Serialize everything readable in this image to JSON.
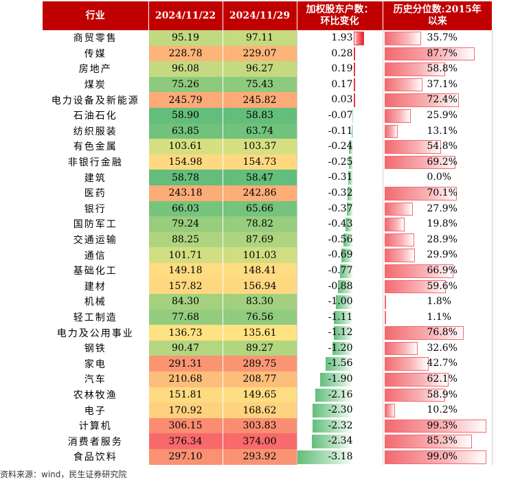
{
  "chart_data": {
    "type": "table",
    "columns": [
      "行业",
      "2024/11/22",
      "2024/11/29",
      "加权股东户数：环比变化",
      "历史分位数:2015年以来"
    ],
    "header": {
      "industry": "行业",
      "date1": "2024/11/22",
      "date2": "2024/11/29",
      "change_line1": "加权股东户数：",
      "change_line2": "环比变化",
      "pct_line1": "历史分位数:2015年",
      "pct_line2": "以来"
    },
    "rows": [
      {
        "industry": "商贸零售",
        "v1": "95.19",
        "v2": "97.11",
        "change": "1.93",
        "pct": "35.7%"
      },
      {
        "industry": "传媒",
        "v1": "228.78",
        "v2": "229.07",
        "change": "0.28",
        "pct": "87.7%"
      },
      {
        "industry": "房地产",
        "v1": "96.08",
        "v2": "96.27",
        "change": "0.19",
        "pct": "58.8%"
      },
      {
        "industry": "煤炭",
        "v1": "75.26",
        "v2": "75.43",
        "change": "0.17",
        "pct": "37.1%"
      },
      {
        "industry": "电力设备及新能源",
        "v1": "245.79",
        "v2": "245.82",
        "change": "0.03",
        "pct": "72.4%"
      },
      {
        "industry": "石油石化",
        "v1": "58.90",
        "v2": "58.83",
        "change": "-0.07",
        "pct": "25.9%"
      },
      {
        "industry": "纺织服装",
        "v1": "63.85",
        "v2": "63.74",
        "change": "-0.11",
        "pct": "13.1%"
      },
      {
        "industry": "有色金属",
        "v1": "103.61",
        "v2": "103.37",
        "change": "-0.24",
        "pct": "54.8%"
      },
      {
        "industry": "非银行金融",
        "v1": "154.98",
        "v2": "154.73",
        "change": "-0.25",
        "pct": "69.2%"
      },
      {
        "industry": "建筑",
        "v1": "58.78",
        "v2": "58.47",
        "change": "-0.31",
        "pct": "0.0%"
      },
      {
        "industry": "医药",
        "v1": "243.18",
        "v2": "242.86",
        "change": "-0.32",
        "pct": "70.1%"
      },
      {
        "industry": "银行",
        "v1": "66.03",
        "v2": "65.66",
        "change": "-0.37",
        "pct": "27.9%"
      },
      {
        "industry": "国防军工",
        "v1": "79.24",
        "v2": "78.82",
        "change": "-0.43",
        "pct": "19.8%"
      },
      {
        "industry": "交通运输",
        "v1": "88.25",
        "v2": "87.69",
        "change": "-0.56",
        "pct": "28.9%"
      },
      {
        "industry": "通信",
        "v1": "101.71",
        "v2": "101.03",
        "change": "-0.69",
        "pct": "29.9%"
      },
      {
        "industry": "基础化工",
        "v1": "149.18",
        "v2": "148.41",
        "change": "-0.77",
        "pct": "66.9%"
      },
      {
        "industry": "建材",
        "v1": "157.82",
        "v2": "156.94",
        "change": "-0.88",
        "pct": "59.6%"
      },
      {
        "industry": "机械",
        "v1": "84.30",
        "v2": "83.30",
        "change": "-1.00",
        "pct": "1.8%"
      },
      {
        "industry": "轻工制造",
        "v1": "77.68",
        "v2": "76.56",
        "change": "-1.11",
        "pct": "1.1%"
      },
      {
        "industry": "电力及公用事业",
        "v1": "136.73",
        "v2": "135.61",
        "change": "-1.12",
        "pct": "76.8%"
      },
      {
        "industry": "钢铁",
        "v1": "90.47",
        "v2": "89.27",
        "change": "-1.20",
        "pct": "32.6%"
      },
      {
        "industry": "家电",
        "v1": "291.31",
        "v2": "289.75",
        "change": "-1.56",
        "pct": "42.7%"
      },
      {
        "industry": "汽车",
        "v1": "210.68",
        "v2": "208.77",
        "change": "-1.90",
        "pct": "62.1%"
      },
      {
        "industry": "农林牧渔",
        "v1": "151.81",
        "v2": "149.65",
        "change": "-2.16",
        "pct": "58.9%"
      },
      {
        "industry": "电子",
        "v1": "170.92",
        "v2": "168.62",
        "change": "-2.30",
        "pct": "10.2%"
      },
      {
        "industry": "计算机",
        "v1": "306.15",
        "v2": "303.83",
        "change": "-2.32",
        "pct": "99.3%"
      },
      {
        "industry": "消费者服务",
        "v1": "376.34",
        "v2": "374.00",
        "change": "-2.34",
        "pct": "85.3%"
      },
      {
        "industry": "食品饮料",
        "v1": "297.10",
        "v2": "293.92",
        "change": "-3.18",
        "pct": "99.0%"
      }
    ],
    "colors": {
      "header_bg": "#c00000",
      "header_text": "#ffffff",
      "heat_low": "#63be7b",
      "heat_mid": "#ffeb84",
      "heat_high": "#f8696b",
      "bar_positive": "#e8202a",
      "bar_negative": "#63be7b",
      "bar_history": "#f26a6f"
    }
  },
  "source": "资料来源：wind，民生证券研究院"
}
